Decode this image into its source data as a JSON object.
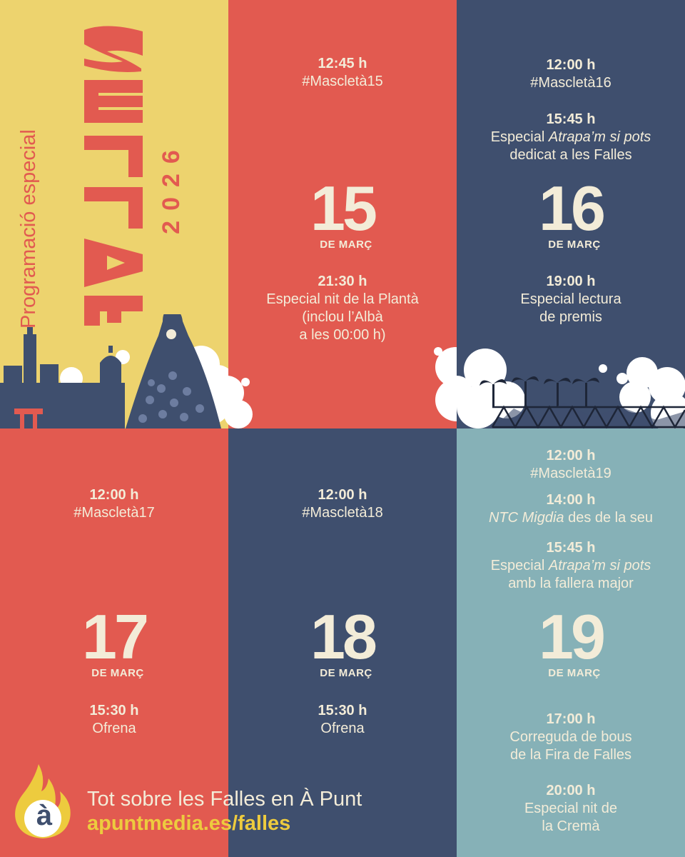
{
  "header": {
    "program_label": "Programació especial",
    "title": "FALLES",
    "year": "2026"
  },
  "colors": {
    "yellow": "#EDD36E",
    "red": "#E25A50",
    "navy": "#3F4F6E",
    "teal": "#86B1B7",
    "cream": "#F3ECD8",
    "brand_gold": "#EDCB3E"
  },
  "days": {
    "d15": {
      "number": "15",
      "month": "DE MARÇ",
      "events": [
        {
          "time": "12:45 h",
          "lines": [
            "#Mascletà15"
          ]
        },
        {
          "time": "21:30 h",
          "lines": [
            "Especial nit de la Plantà",
            "(inclou l’Albà",
            "a les 00:00 h)"
          ]
        }
      ]
    },
    "d16": {
      "number": "16",
      "month": "DE MARÇ",
      "events": [
        {
          "time": "12:00 h",
          "lines": [
            "#Mascletà16"
          ]
        },
        {
          "time": "15:45 h",
          "line1_prefix": "Especial ",
          "line1_italic": "Atrapa’m si pots",
          "line2": "dedicat a les Falles"
        },
        {
          "time": "19:00 h",
          "lines": [
            "Especial lectura",
            "de premis"
          ]
        }
      ]
    },
    "d17": {
      "number": "17",
      "month": "DE MARÇ",
      "events": [
        {
          "time": "12:00 h",
          "lines": [
            "#Mascletà17"
          ]
        },
        {
          "time": "15:30 h",
          "lines": [
            "Ofrena"
          ]
        }
      ]
    },
    "d18": {
      "number": "18",
      "month": "DE MARÇ",
      "events": [
        {
          "time": "12:00 h",
          "lines": [
            "#Mascletà18"
          ]
        },
        {
          "time": "15:30 h",
          "lines": [
            "Ofrena"
          ]
        }
      ]
    },
    "d19": {
      "number": "19",
      "month": "DE MARÇ",
      "events": [
        {
          "time": "12:00 h",
          "lines": [
            "#Mascletà19"
          ]
        },
        {
          "time": "14:00 h",
          "line1_italic": "NTC Migdia",
          "line1_suffix": " des de la seu"
        },
        {
          "time": "15:45 h",
          "line1_prefix": "Especial ",
          "line1_italic": "Atrapa’m si pots",
          "line2": "amb la fallera major"
        },
        {
          "time": "17:00 h",
          "lines": [
            "Correguda de bous",
            "de la Fira de Falles"
          ]
        },
        {
          "time": "20:00 h",
          "lines": [
            "Especial nit de",
            "la Cremà"
          ]
        }
      ]
    }
  },
  "footer": {
    "logo_icon": "a-punt-flame-logo",
    "logo_letter": "à",
    "tagline": "Tot sobre les Falles en À Punt",
    "url": "apuntmedia.es/falles"
  }
}
